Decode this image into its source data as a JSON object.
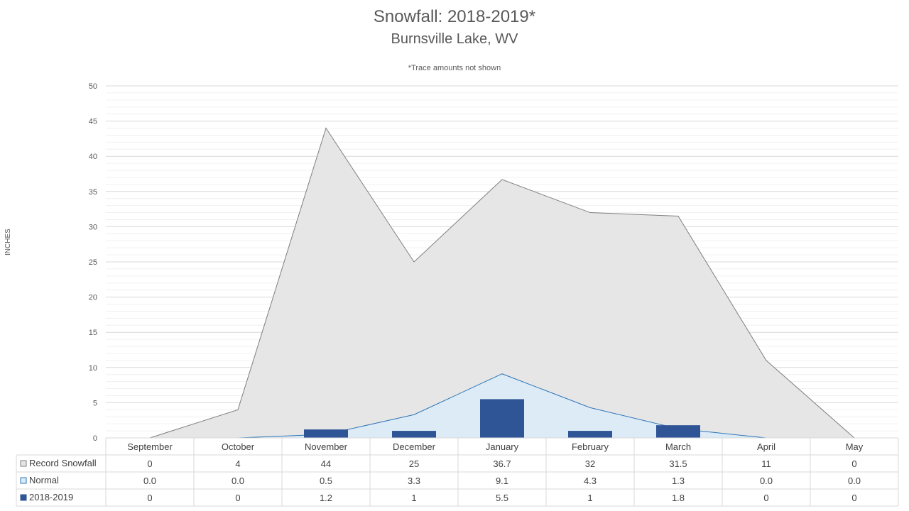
{
  "chart_data": {
    "type": "area",
    "title": "Snowfall: 2018-2019*",
    "subtitle": "Burnsville Lake, WV",
    "note": "*Trace amounts not shown",
    "ylabel": "INCHES",
    "ylim": [
      0,
      50
    ],
    "yticks": [
      0,
      5,
      10,
      15,
      20,
      25,
      30,
      35,
      40,
      45,
      50
    ],
    "grid": true,
    "categories": [
      "September",
      "October",
      "November",
      "December",
      "January",
      "February",
      "March",
      "April",
      "May"
    ],
    "series": [
      {
        "name": "Record Snowfall",
        "kind": "area",
        "color": "#e7e6e6",
        "stroke": "#7f7f7f",
        "values": [
          0,
          4,
          44,
          25,
          36.7,
          32,
          31.5,
          11,
          0
        ],
        "labels": [
          "0",
          "4",
          "44",
          "25",
          "36.7",
          "32",
          "31.5",
          "11",
          "0"
        ]
      },
      {
        "name": "Normal",
        "kind": "area",
        "color": "#ddebf7",
        "stroke": "#2e75b6",
        "values": [
          0.0,
          0.0,
          0.5,
          3.3,
          9.1,
          4.3,
          1.3,
          0.0,
          0.0
        ],
        "labels": [
          "0.0",
          "0.0",
          "0.5",
          "3.3",
          "9.1",
          "4.3",
          "1.3",
          "0.0",
          "0.0"
        ]
      },
      {
        "name": "2018-2019",
        "kind": "bar",
        "color": "#2f5597",
        "stroke": "#2f5597",
        "values": [
          0,
          0,
          1.2,
          1,
          5.5,
          1,
          1.8,
          0,
          0
        ],
        "labels": [
          "0",
          "0",
          "1.2",
          "1",
          "5.5",
          "1",
          "1.8",
          "0",
          "0"
        ]
      }
    ]
  }
}
